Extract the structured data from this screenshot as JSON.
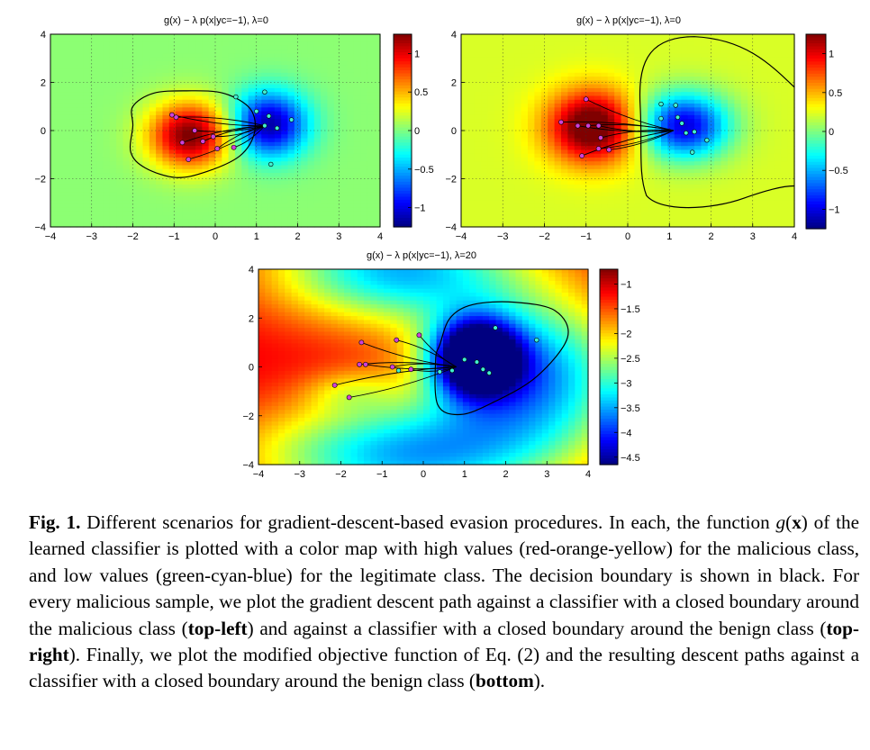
{
  "chart_data": [
    {
      "type": "heatmap",
      "title": "g(x) − λ p(x|yc=−1), λ=0",
      "xlim": [
        -4,
        4
      ],
      "ylim": [
        -4,
        4
      ],
      "xticks": [
        "−4",
        "−3",
        "−2",
        "−1",
        "0",
        "1",
        "2",
        "3",
        "4"
      ],
      "yticks": [
        "4",
        "2",
        "0",
        "−2",
        "−4"
      ],
      "colorbar": {
        "min": -1.25,
        "max": 1.25,
        "ticks": [
          "1",
          "0.5",
          "0",
          "−0.5",
          "−1"
        ]
      },
      "gridlines": true,
      "malicious_points": [
        [
          -1.05,
          0.65
        ],
        [
          -0.95,
          0.55
        ],
        [
          -0.65,
          -1.2
        ],
        [
          -0.8,
          -0.5
        ],
        [
          -0.5,
          0
        ],
        [
          -0.3,
          -0.45
        ],
        [
          -0.05,
          -0.25
        ],
        [
          0.05,
          -0.75
        ],
        [
          0.45,
          -0.7
        ]
      ],
      "benign_points": [
        [
          0.5,
          1.4
        ],
        [
          1.2,
          1.6
        ],
        [
          1.0,
          0.8
        ],
        [
          1.3,
          0.6
        ],
        [
          1.2,
          0.2
        ],
        [
          1.5,
          0.1
        ],
        [
          1.85,
          0.45
        ],
        [
          1.35,
          -1.4
        ]
      ],
      "descent_paths_end": [
        1.2,
        0.2
      ]
    },
    {
      "type": "heatmap",
      "title": "g(x) − λ p(x|yc=−1), λ=0",
      "xlim": [
        -4,
        4
      ],
      "ylim": [
        -4,
        4
      ],
      "xticks": [
        "−4",
        "−3",
        "−2",
        "−1",
        "0",
        "1",
        "2",
        "3",
        "4"
      ],
      "yticks": [
        "4",
        "2",
        "0",
        "−2",
        "−4"
      ],
      "colorbar": {
        "min": -1.25,
        "max": 1.25,
        "ticks": [
          "1",
          "0.5",
          "0",
          "−0.5",
          "−1"
        ]
      },
      "gridlines": true,
      "malicious_points": [
        [
          -1.0,
          1.3
        ],
        [
          -1.6,
          0.35
        ],
        [
          -1.2,
          0.2
        ],
        [
          -0.95,
          0.2
        ],
        [
          -0.7,
          0.2
        ],
        [
          -0.65,
          -0.3
        ],
        [
          -0.7,
          -0.75
        ],
        [
          -1.1,
          -1.05
        ],
        [
          -0.45,
          -0.8
        ]
      ],
      "benign_points": [
        [
          0.8,
          1.1
        ],
        [
          1.15,
          1.05
        ],
        [
          0.8,
          0.5
        ],
        [
          1.2,
          0.55
        ],
        [
          1.3,
          0.3
        ],
        [
          1.4,
          -0.1
        ],
        [
          1.6,
          -0.05
        ],
        [
          1.9,
          -0.4
        ],
        [
          1.55,
          -0.9
        ]
      ],
      "descent_paths_end": [
        1.1,
        0.0
      ]
    },
    {
      "type": "heatmap",
      "title": "g(x) − λ p(x|yc=−1), λ=20",
      "xlim": [
        -4,
        4
      ],
      "ylim": [
        -4,
        4
      ],
      "xticks": [
        "−4",
        "−3",
        "−2",
        "−1",
        "0",
        "1",
        "2",
        "3",
        "4"
      ],
      "yticks": [
        "4",
        "2",
        "0",
        "−2",
        "−4"
      ],
      "colorbar": {
        "min": -4.65,
        "max": -0.7,
        "ticks": [
          "−1",
          "−1.5",
          "−2",
          "−2.5",
          "−3",
          "−3.5",
          "−4",
          "−4.5"
        ]
      },
      "gridlines": false,
      "malicious_points": [
        [
          -1.5,
          1.0
        ],
        [
          -0.65,
          1.1
        ],
        [
          -0.1,
          1.3
        ],
        [
          -1.55,
          0.1
        ],
        [
          -1.4,
          0.1
        ],
        [
          -0.75,
          0.0
        ],
        [
          -0.3,
          -0.1
        ],
        [
          -2.15,
          -0.75
        ],
        [
          -1.8,
          -1.25
        ]
      ],
      "benign_points": [
        [
          2.75,
          1.1
        ],
        [
          1.75,
          1.6
        ],
        [
          1.0,
          0.3
        ],
        [
          1.3,
          0.2
        ],
        [
          -0.6,
          -0.15
        ],
        [
          0.4,
          -0.2
        ],
        [
          0.7,
          -0.15
        ],
        [
          1.45,
          -0.1
        ],
        [
          1.6,
          -0.25
        ]
      ],
      "descent_paths_end": [
        0.8,
        0.0
      ]
    }
  ],
  "caption": {
    "label": "Fig. 1.",
    "p1": " Different scenarios for gradient-descent-based evasion procedures. In each, the function ",
    "gx_g": "g",
    "gx_lp": "(",
    "gx_x": "x",
    "gx_rp": ")",
    "p2": " of the learned classifier is plotted with a color map with high values (red-orange-yellow) for the malicious class, and low values (green-cyan-blue) for the legitimate class. The decision boundary is shown in black. For every malicious sample, we plot the gradient descent path against a classifier with a closed boundary around the malicious class (",
    "b1": "top-left",
    "p3": ") and against a classifier with a closed boundary around the benign class (",
    "b2": "top-right",
    "p4": "). Finally, we plot the modified objective function of Eq. (2) and the resulting descent paths against a classifier with a closed boundary around the benign class (",
    "b3": "bottom",
    "p5": ")."
  },
  "colors": {
    "malicious_marker": "#d040d8",
    "benign_marker": "#40f0d0",
    "boundary": "#000000"
  }
}
